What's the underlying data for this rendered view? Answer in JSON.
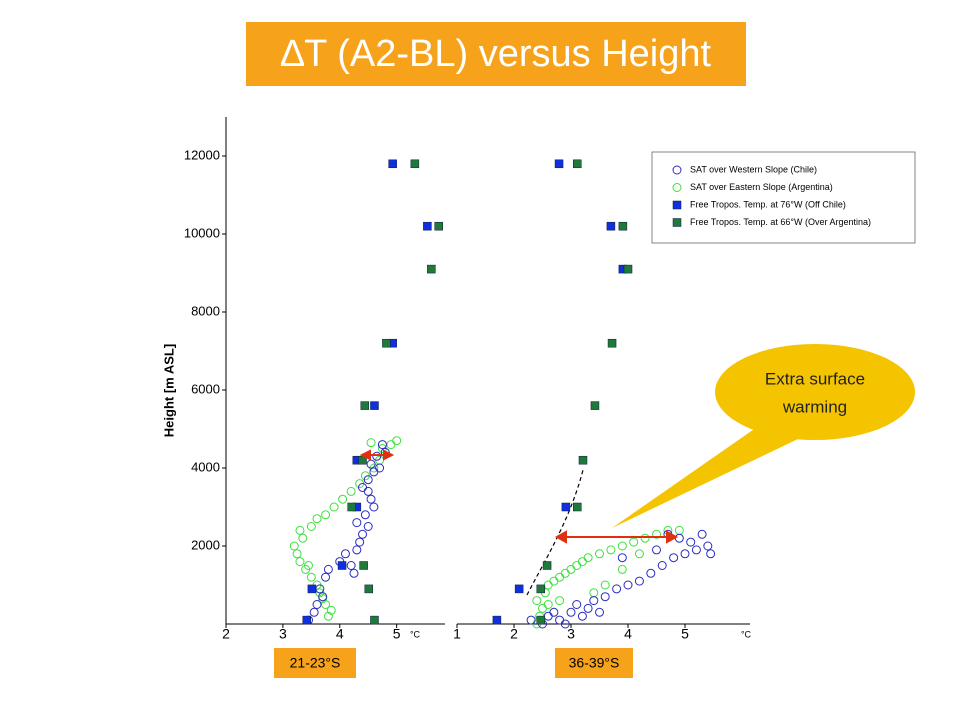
{
  "title": "∆T (A2-BL) versus Height",
  "callout": [
    "Extra surface",
    "warming"
  ],
  "chart_data": [
    {
      "type": "scatter",
      "region_label": "21-23°S",
      "xlabel": "°C",
      "ylabel": "Height [m ASL]",
      "xlim": [
        2,
        5.85
      ],
      "xticks": [
        2,
        3,
        4,
        5
      ],
      "ylim": [
        0,
        13000
      ],
      "yticks": [
        2000,
        4000,
        6000,
        8000,
        10000,
        12000
      ],
      "series": [
        {
          "color": "#2b2bbf",
          "marker": "circle",
          "x": [
            3.45,
            3.55,
            3.6,
            3.7,
            3.65,
            3.75,
            3.8,
            4.0,
            4.1,
            4.2,
            4.25,
            4.3,
            4.35,
            4.4,
            4.3,
            4.45,
            4.5,
            4.55,
            4.4,
            4.5,
            4.6,
            4.55,
            4.7,
            4.65,
            4.8,
            4.75,
            4.5,
            4.6
          ],
          "values": [
            100,
            300,
            500,
            700,
            900,
            1200,
            1400,
            1600,
            1800,
            1500,
            1300,
            1900,
            2100,
            2300,
            2600,
            2800,
            2500,
            3200,
            3500,
            3700,
            3900,
            4100,
            4000,
            4300,
            4400,
            4600,
            3400,
            3000
          ]
        },
        {
          "color": "#3ee03e",
          "marker": "circle",
          "x": [
            3.8,
            3.85,
            3.75,
            3.7,
            3.65,
            3.6,
            3.5,
            3.4,
            3.3,
            3.25,
            3.2,
            3.35,
            3.5,
            3.6,
            3.75,
            3.9,
            4.05,
            4.2,
            4.35,
            4.45,
            4.6,
            4.7,
            4.8,
            4.9,
            5.0,
            4.75,
            4.55,
            3.45,
            3.3
          ],
          "values": [
            200,
            350,
            500,
            650,
            800,
            1000,
            1200,
            1400,
            1600,
            1800,
            2000,
            2200,
            2500,
            2700,
            2800,
            3000,
            3200,
            3400,
            3600,
            3800,
            4000,
            4200,
            4400,
            4600,
            4700,
            4500,
            4650,
            1500,
            2400
          ]
        },
        {
          "color": "#1030e0",
          "marker": "square",
          "x": [
            4.93,
            5.54,
            4.93,
            4.61,
            4.3,
            4.3,
            4.04,
            3.51,
            3.42
          ],
          "values": [
            11800,
            10200,
            7200,
            5600,
            4200,
            3000,
            1500,
            900,
            100
          ]
        },
        {
          "color": "#1f7a3a",
          "marker": "square",
          "x": [
            5.32,
            5.74,
            5.61,
            4.82,
            4.44,
            4.4,
            4.21,
            4.42,
            4.51,
            4.61
          ],
          "values": [
            11800,
            10200,
            9100,
            7200,
            5600,
            4200,
            3000,
            1500,
            900,
            100
          ]
        }
      ]
    },
    {
      "type": "scatter",
      "region_label": "36-39°S",
      "xlabel": "°C",
      "xlim": [
        1,
        6.14
      ],
      "xticks": [
        1,
        2,
        3,
        4,
        5
      ],
      "ylim": [
        0,
        13000
      ],
      "series": [
        {
          "name": "SAT over Western Slope (Chile)",
          "color": "#2b2bbf",
          "marker": "circle",
          "x": [
            2.3,
            2.5,
            2.6,
            2.8,
            3.0,
            3.2,
            3.3,
            3.1,
            2.9,
            2.7,
            3.4,
            3.6,
            3.8,
            4.0,
            4.2,
            4.4,
            4.6,
            4.8,
            5.0,
            5.2,
            5.4,
            5.3,
            5.1,
            4.9,
            4.7,
            4.5,
            3.9,
            3.5,
            5.45
          ],
          "values": [
            100,
            0,
            200,
            100,
            300,
            200,
            400,
            500,
            0,
            300,
            600,
            700,
            900,
            1000,
            1100,
            1300,
            1500,
            1700,
            1800,
            1900,
            2000,
            2300,
            2100,
            2200,
            2300,
            1900,
            1700,
            300,
            1800
          ]
        },
        {
          "name": "SAT over Eastern Slope (Argentina)",
          "color": "#3ee03e",
          "marker": "circle",
          "x": [
            2.4,
            2.45,
            2.5,
            2.4,
            2.55,
            2.6,
            2.7,
            2.8,
            2.9,
            3.0,
            3.1,
            3.2,
            3.3,
            3.5,
            3.7,
            3.9,
            4.1,
            4.3,
            4.5,
            4.7,
            4.9,
            3.4,
            3.6,
            3.9,
            4.2,
            2.6,
            2.8
          ],
          "values": [
            0,
            200,
            400,
            600,
            800,
            1000,
            1100,
            1200,
            1300,
            1400,
            1500,
            1600,
            1700,
            1800,
            1900,
            2000,
            2100,
            2200,
            2300,
            2400,
            2400,
            800,
            1000,
            1400,
            1800,
            500,
            600
          ]
        },
        {
          "name": "Free Tropos. Temp. at 76°W (Off Chile)",
          "color": "#1030e0",
          "marker": "square",
          "x": [
            2.79,
            3.7,
            3.91,
            2.91,
            2.09,
            1.7
          ],
          "values": [
            11800,
            10200,
            9100,
            3000,
            900,
            100
          ]
        },
        {
          "name": "Free Tropos. Temp. at 66°W (Over Argentina)",
          "color": "#1f7a3a",
          "marker": "square",
          "x": [
            3.11,
            3.91,
            4.0,
            3.72,
            3.42,
            3.21,
            3.11,
            2.58,
            2.47,
            2.47
          ],
          "values": [
            11800,
            10200,
            9100,
            7200,
            5600,
            4200,
            3000,
            1500,
            900,
            100
          ]
        }
      ]
    }
  ]
}
